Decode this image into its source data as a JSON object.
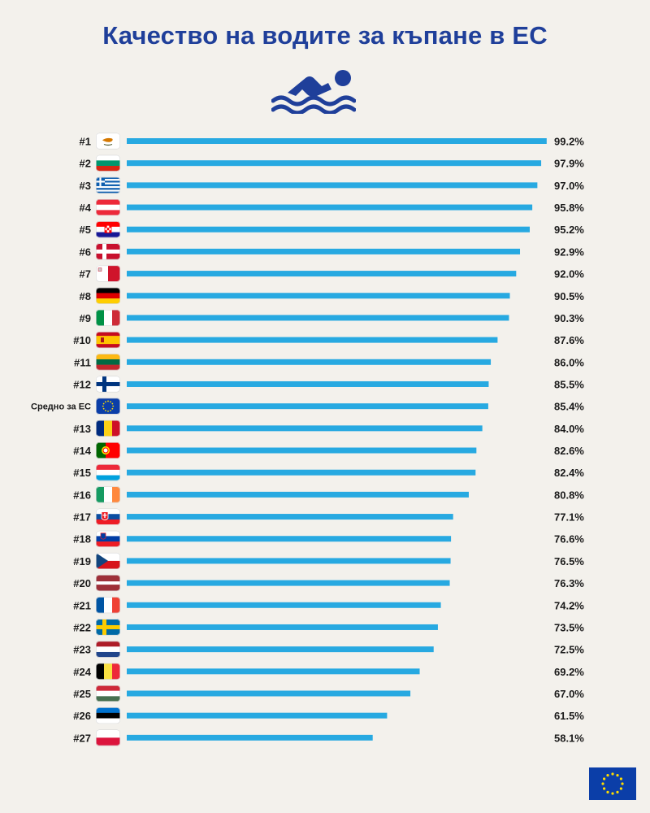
{
  "title": "Качество на водите за къпане в ЕС",
  "colors": {
    "title": "#1f3f9a",
    "bar": "#27a9e1",
    "text": "#1a1a1a",
    "background": "#f3f1ec",
    "eu_blue": "#0b3ea8",
    "eu_star": "#ffdd00"
  },
  "icons": {
    "header": "swimmer-icon",
    "footer": "eu-flag-logo"
  },
  "chart_data": {
    "type": "bar",
    "orientation": "horizontal",
    "xlim": [
      0,
      100
    ],
    "grid": false,
    "legend": "none",
    "value_suffix": "%",
    "categories": [
      "#1",
      "#2",
      "#3",
      "#4",
      "#5",
      "#6",
      "#7",
      "#8",
      "#9",
      "#10",
      "#11",
      "#12",
      "Средно за ЕС",
      "#13",
      "#14",
      "#15",
      "#16",
      "#17",
      "#18",
      "#19",
      "#20",
      "#21",
      "#22",
      "#23",
      "#24",
      "#25",
      "#26",
      "#27"
    ],
    "flags": [
      "cyprus",
      "bulgaria",
      "greece",
      "austria",
      "croatia",
      "denmark",
      "malta",
      "germany",
      "italy",
      "spain",
      "lithuania",
      "finland",
      "european-union",
      "romania",
      "portugal",
      "luxembourg",
      "ireland",
      "slovakia",
      "slovenia",
      "czechia",
      "latvia",
      "france",
      "sweden",
      "netherlands",
      "belgium",
      "hungary",
      "estonia",
      "poland"
    ],
    "values": [
      99.2,
      97.9,
      97.0,
      95.8,
      95.2,
      92.9,
      92.0,
      90.5,
      90.3,
      87.6,
      86.0,
      85.5,
      85.4,
      84.0,
      82.6,
      82.4,
      80.8,
      77.1,
      76.6,
      76.5,
      76.3,
      74.2,
      73.5,
      72.5,
      69.2,
      67.0,
      61.5,
      58.1
    ],
    "value_labels": [
      "99.2%",
      "97.9%",
      "97.0%",
      "95.8%",
      "95.2%",
      "92.9%",
      "92.0%",
      "90.5%",
      "90.3%",
      "87.6%",
      "86.0%",
      "85.5%",
      "85.4%",
      "84.0%",
      "82.6%",
      "82.4%",
      "80.8%",
      "77.1%",
      "76.6%",
      "76.5%",
      "76.3%",
      "74.2%",
      "73.5%",
      "72.5%",
      "69.2%",
      "67.0%",
      "61.5%",
      "58.1%"
    ]
  }
}
